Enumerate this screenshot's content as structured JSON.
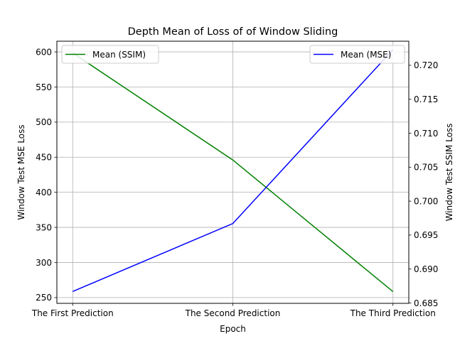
{
  "chart_data": {
    "type": "line",
    "title": "Depth Mean of Loss of of Window Sliding",
    "xlabel": "Epoch",
    "ylabel_left": "Window Test MSE Loss",
    "ylabel_right": "Window Test SSIM Loss",
    "categories": [
      "The First Prediction",
      "The Second Prediction",
      "The Third Prediction"
    ],
    "ylim_left": [
      241.75,
      615.25
    ],
    "ylim_right": [
      0.68495,
      0.72355
    ],
    "yticks_left": [
      250,
      300,
      350,
      400,
      450,
      500,
      550,
      600
    ],
    "yticks_right": [
      0.685,
      0.69,
      0.695,
      0.7,
      0.705,
      0.71,
      0.715,
      0.72
    ],
    "grid": true,
    "series": [
      {
        "name": "Mean (SSIM)",
        "axis": "left",
        "color": "#008000",
        "values": [
          598.5,
          446.0,
          258.5
        ],
        "legend_position": "top-left"
      },
      {
        "name": "Mean (MSE)",
        "axis": "right",
        "color": "#0000ff",
        "values": [
          0.6867,
          0.6967,
          0.7223
        ],
        "legend_position": "top-right"
      }
    ]
  }
}
